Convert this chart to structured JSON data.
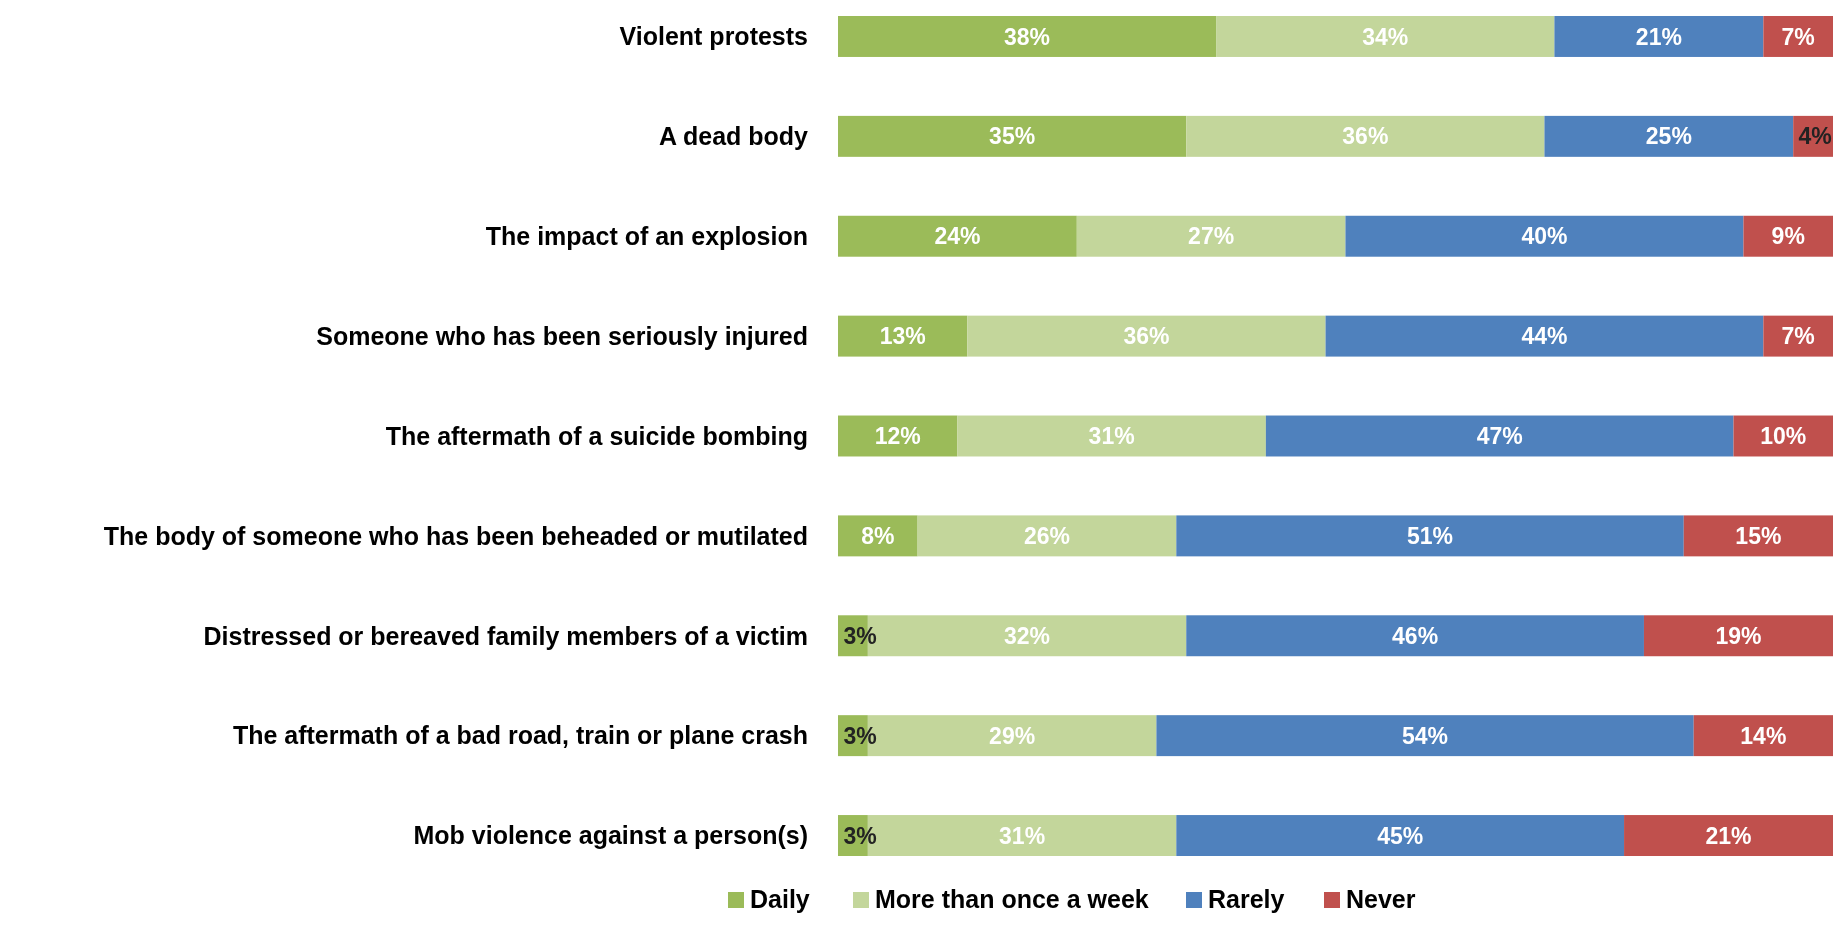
{
  "chart_data": {
    "type": "bar",
    "orientation": "horizontal",
    "stacked": true,
    "categories": [
      "Violent protests",
      "A dead body",
      "The impact of an explosion",
      "Someone who has been seriously injured",
      "The aftermath of a suicide bombing",
      "The body of someone who has been beheaded or mutilated",
      "Distressed or bereaved family members of a victim",
      "The aftermath of a bad road, train or plane crash",
      "Mob violence against a person(s)"
    ],
    "series": [
      {
        "name": "Daily",
        "color": "#9bbb59",
        "values": [
          38,
          35,
          24,
          13,
          12,
          8,
          3,
          3,
          3
        ],
        "value_labels": [
          "38%",
          "35%",
          "24%",
          "13%",
          "12%",
          "8%",
          "3%",
          "3%",
          "3%"
        ]
      },
      {
        "name": "More than once a week",
        "color": "#c3d69b",
        "values": [
          34,
          36,
          27,
          36,
          31,
          26,
          32,
          29,
          31
        ],
        "value_labels": [
          "34%",
          "36%",
          "27%",
          "36%",
          "31%",
          "26%",
          "32%",
          "29%",
          "31%"
        ]
      },
      {
        "name": "Rarely",
        "color": "#4f81bd",
        "values": [
          21,
          25,
          40,
          44,
          47,
          51,
          46,
          54,
          45
        ],
        "value_labels": [
          "21%",
          "25%",
          "40%",
          "44%",
          "47%",
          "51%",
          "46%",
          "54%",
          "45%"
        ]
      },
      {
        "name": "Never",
        "color": "#c0504d",
        "values": [
          7,
          4,
          9,
          7,
          10,
          15,
          19,
          14,
          21
        ],
        "value_labels": [
          "7%",
          "4%",
          "9%",
          "7%",
          "10%",
          "15%",
          "19%",
          "14%",
          "21%"
        ]
      }
    ],
    "xlim": [
      0,
      100
    ],
    "tick_labels": "y",
    "grid": false,
    "legend": "bottom"
  }
}
